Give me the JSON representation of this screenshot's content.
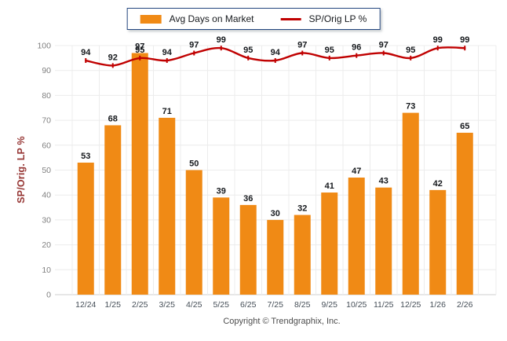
{
  "legend": {
    "bar_label": "Avg Days on Market",
    "line_label": "SP/Orig LP %"
  },
  "footer": {
    "copyright": "Copyright © Trendgraphix, Inc."
  },
  "chart_data": {
    "type": "combo",
    "categories": [
      "12/24",
      "1/25",
      "2/25",
      "3/25",
      "4/25",
      "5/25",
      "6/25",
      "7/25",
      "8/25",
      "9/25",
      "10/25",
      "11/25",
      "12/25",
      "1/26",
      "2/26"
    ],
    "series": [
      {
        "name": "Avg Days on Market",
        "type": "bar",
        "values": [
          53,
          68,
          97,
          71,
          50,
          39,
          36,
          30,
          32,
          41,
          47,
          43,
          73,
          42,
          65
        ]
      },
      {
        "name": "SP/Orig LP %",
        "type": "line",
        "values": [
          94,
          92,
          95,
          94,
          97,
          99,
          95,
          94,
          97,
          95,
          96,
          97,
          95,
          99,
          99
        ]
      }
    ],
    "title": "",
    "xlabel": "",
    "ylabel": "SP/Orig. LP %",
    "ylim": [
      0,
      100
    ],
    "yticks": [
      0,
      10,
      20,
      30,
      40,
      50,
      60,
      70,
      80,
      90,
      100
    ],
    "grid": true,
    "legend_position": "top",
    "data_labels": true
  },
  "colors": {
    "bar": "#F08A15",
    "line": "#C00000",
    "data_label": "#16191d",
    "y_tick": "#808080",
    "x_tick": "#454E57",
    "grid": "#ececec",
    "axis": "#cfcfcf",
    "y_title": "#963634",
    "legend_border": "#24477F"
  }
}
